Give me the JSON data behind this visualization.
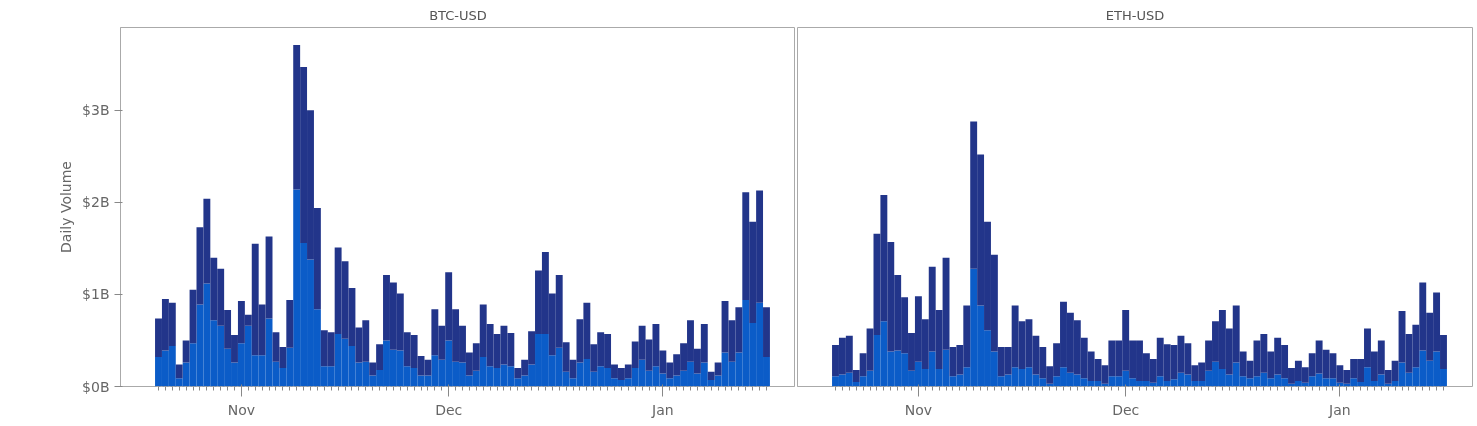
{
  "chart_data": [
    {
      "type": "bar",
      "title": "BTC-USD",
      "ylabel": "Daily Volume",
      "stacked": true,
      "categories": [
        null,
        null,
        null,
        null,
        null,
        null,
        null,
        null,
        null,
        null,
        null,
        null,
        "Nov",
        null,
        null,
        null,
        null,
        null,
        null,
        null,
        null,
        null,
        null,
        null,
        null,
        null,
        null,
        null,
        null,
        null,
        null,
        null,
        null,
        null,
        null,
        null,
        null,
        null,
        null,
        null,
        null,
        null,
        "Dec",
        null,
        null,
        null,
        null,
        null,
        null,
        null,
        null,
        null,
        null,
        null,
        null,
        null,
        null,
        null,
        null,
        null,
        null,
        null,
        null,
        null,
        null,
        null,
        null,
        null,
        null,
        null,
        null,
        null,
        null,
        "Jan",
        null,
        null,
        null,
        null,
        null,
        null,
        null,
        null,
        null,
        null,
        null,
        null,
        null,
        null,
        null
      ],
      "series": [
        {
          "color": "#0b5cc8",
          "values": [
            0.32,
            0.39,
            0.44,
            0.09,
            0.26,
            0.47,
            0.89,
            1.12,
            0.72,
            0.66,
            0.41,
            0.26,
            0.47,
            0.66,
            0.34,
            0.34,
            0.74,
            0.27,
            0.2,
            0.42,
            2.14,
            1.56,
            1.38,
            0.84,
            0.22,
            0.22,
            0.57,
            0.52,
            0.44,
            0.26,
            0.27,
            0.12,
            0.18,
            0.5,
            0.4,
            0.39,
            0.22,
            0.2,
            0.12,
            0.12,
            0.34,
            0.29,
            0.5,
            0.27,
            0.26,
            0.12,
            0.17,
            0.32,
            0.22,
            0.2,
            0.24,
            0.22,
            0.09,
            0.12,
            0.24,
            0.57,
            0.57,
            0.34,
            0.42,
            0.16,
            0.09,
            0.26,
            0.3,
            0.16,
            0.22,
            0.2,
            0.09,
            0.07,
            0.09,
            0.2,
            0.29,
            0.17,
            0.22,
            0.14,
            0.09,
            0.12,
            0.17,
            0.27,
            0.14,
            0.26,
            0.07,
            0.12,
            0.37,
            0.27,
            0.37,
            0.94,
            0.69,
            0.91,
            0.32
          ]
        },
        {
          "color": "#22358a",
          "values": [
            0.42,
            0.56,
            0.47,
            0.15,
            0.24,
            0.58,
            0.84,
            0.92,
            0.68,
            0.62,
            0.42,
            0.3,
            0.46,
            0.12,
            1.21,
            0.55,
            0.89,
            0.32,
            0.23,
            0.52,
            1.57,
            1.91,
            1.62,
            1.1,
            0.39,
            0.37,
            0.94,
            0.84,
            0.63,
            0.38,
            0.45,
            0.14,
            0.28,
            0.71,
            0.73,
            0.62,
            0.37,
            0.36,
            0.21,
            0.17,
            0.5,
            0.37,
            0.74,
            0.57,
            0.4,
            0.25,
            0.3,
            0.57,
            0.46,
            0.37,
            0.42,
            0.36,
            0.11,
            0.17,
            0.36,
            0.69,
            0.89,
            0.67,
            0.79,
            0.32,
            0.2,
            0.47,
            0.61,
            0.3,
            0.37,
            0.37,
            0.15,
            0.13,
            0.15,
            0.29,
            0.37,
            0.34,
            0.46,
            0.25,
            0.17,
            0.23,
            0.3,
            0.45,
            0.27,
            0.42,
            0.09,
            0.14,
            0.56,
            0.45,
            0.49,
            1.17,
            1.1,
            1.22,
            0.54
          ]
        }
      ],
      "ylim": [
        0,
        3.9
      ],
      "yticks": [
        {
          "value": 0,
          "label": "$0B"
        },
        {
          "value": 1,
          "label": "$1B"
        },
        {
          "value": 2,
          "label": "$2B"
        },
        {
          "value": 3,
          "label": "$3B"
        }
      ]
    },
    {
      "type": "bar",
      "title": "ETH-USD",
      "stacked": true,
      "tick_labels": "x",
      "categories": [
        null,
        null,
        null,
        null,
        null,
        null,
        null,
        null,
        null,
        null,
        null,
        null,
        "Nov",
        null,
        null,
        null,
        null,
        null,
        null,
        null,
        null,
        null,
        null,
        null,
        null,
        null,
        null,
        null,
        null,
        null,
        null,
        null,
        null,
        null,
        null,
        null,
        null,
        null,
        null,
        null,
        null,
        null,
        "Dec",
        null,
        null,
        null,
        null,
        null,
        null,
        null,
        null,
        null,
        null,
        null,
        null,
        null,
        null,
        null,
        null,
        null,
        null,
        null,
        null,
        null,
        null,
        null,
        null,
        null,
        null,
        null,
        null,
        null,
        null,
        "Jan",
        null,
        null,
        null,
        null,
        null,
        null,
        null,
        null,
        null,
        null,
        null,
        null,
        null,
        null,
        null
      ],
      "series": [
        {
          "color": "#0b5cc8",
          "values": [
            0.11,
            0.13,
            0.15,
            0.05,
            0.11,
            0.17,
            0.56,
            0.71,
            0.38,
            0.39,
            0.36,
            0.17,
            0.27,
            0.19,
            0.38,
            0.19,
            0.4,
            0.11,
            0.13,
            0.21,
            1.28,
            0.88,
            0.61,
            0.38,
            0.11,
            0.13,
            0.21,
            0.19,
            0.21,
            0.13,
            0.09,
            0.03,
            0.11,
            0.21,
            0.15,
            0.13,
            0.09,
            0.06,
            0.06,
            0.03,
            0.11,
            0.11,
            0.17,
            0.09,
            0.06,
            0.06,
            0.04,
            0.11,
            0.06,
            0.08,
            0.15,
            0.13,
            0.06,
            0.06,
            0.17,
            0.27,
            0.19,
            0.13,
            0.26,
            0.11,
            0.09,
            0.11,
            0.15,
            0.09,
            0.13,
            0.09,
            0.03,
            0.06,
            0.04,
            0.11,
            0.14,
            0.09,
            0.09,
            0.04,
            0.03,
            0.09,
            0.05,
            0.21,
            0.06,
            0.13,
            0.03,
            0.06,
            0.26,
            0.15,
            0.21,
            0.39,
            0.28,
            0.38,
            0.19
          ]
        },
        {
          "color": "#22358a",
          "values": [
            0.34,
            0.4,
            0.4,
            0.13,
            0.25,
            0.46,
            1.1,
            1.37,
            1.19,
            0.82,
            0.61,
            0.41,
            0.71,
            0.54,
            0.92,
            0.64,
            1.0,
            0.32,
            0.32,
            0.67,
            1.6,
            1.64,
            1.18,
            1.05,
            0.32,
            0.3,
            0.67,
            0.52,
            0.52,
            0.42,
            0.34,
            0.19,
            0.36,
            0.71,
            0.65,
            0.59,
            0.44,
            0.32,
            0.24,
            0.2,
            0.39,
            0.39,
            0.66,
            0.41,
            0.44,
            0.3,
            0.26,
            0.42,
            0.4,
            0.37,
            0.4,
            0.34,
            0.17,
            0.2,
            0.33,
            0.44,
            0.64,
            0.5,
            0.62,
            0.27,
            0.19,
            0.39,
            0.42,
            0.29,
            0.4,
            0.36,
            0.17,
            0.22,
            0.17,
            0.25,
            0.36,
            0.31,
            0.27,
            0.19,
            0.15,
            0.21,
            0.25,
            0.42,
            0.32,
            0.37,
            0.15,
            0.22,
            0.56,
            0.42,
            0.46,
            0.74,
            0.52,
            0.64,
            0.37
          ]
        }
      ],
      "ylim": [
        0,
        3.9
      ]
    }
  ]
}
